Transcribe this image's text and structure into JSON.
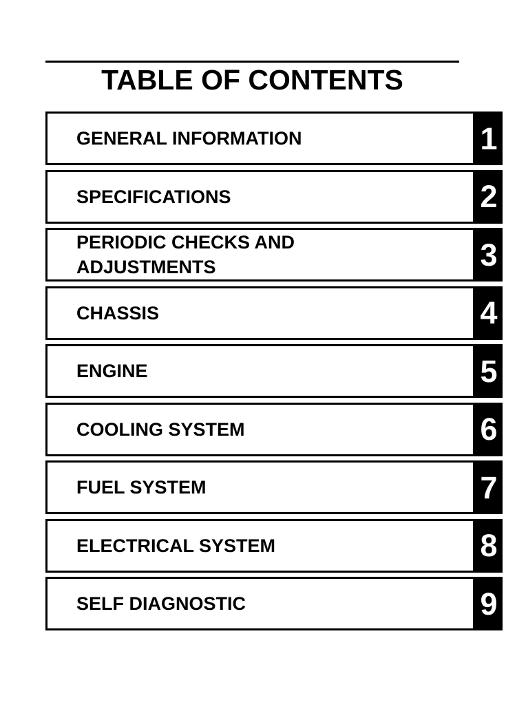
{
  "page": {
    "title": "TABLE OF CONTENTS"
  },
  "toc": {
    "chapters": [
      {
        "label": "GENERAL INFORMATION",
        "number": "1"
      },
      {
        "label": "SPECIFICATIONS",
        "number": "2"
      },
      {
        "label": "PERIODIC CHECKS AND ADJUSTMENTS",
        "number": "3"
      },
      {
        "label": "CHASSIS",
        "number": "4"
      },
      {
        "label": "ENGINE",
        "number": "5"
      },
      {
        "label": "COOLING SYSTEM",
        "number": "6"
      },
      {
        "label": "FUEL SYSTEM",
        "number": "7"
      },
      {
        "label": "ELECTRICAL SYSTEM",
        "number": "8"
      },
      {
        "label": "SELF DIAGNOSTIC",
        "number": "9"
      }
    ]
  },
  "colors": {
    "ink": "#000000",
    "paper": "#ffffff",
    "number_box_bg": "#000000",
    "number_text": "#ffffff"
  }
}
